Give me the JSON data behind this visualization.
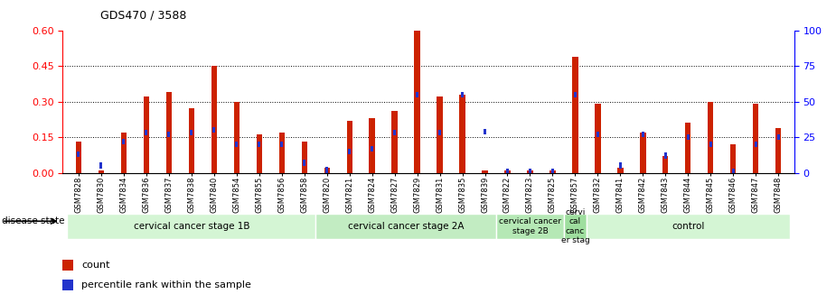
{
  "title": "GDS470 / 3588",
  "samples": [
    "GSM7828",
    "GSM7830",
    "GSM7834",
    "GSM7836",
    "GSM7837",
    "GSM7838",
    "GSM7840",
    "GSM7854",
    "GSM7855",
    "GSM7856",
    "GSM7858",
    "GSM7820",
    "GSM7821",
    "GSM7824",
    "GSM7827",
    "GSM7829",
    "GSM7831",
    "GSM7835",
    "GSM7839",
    "GSM7822",
    "GSM7823",
    "GSM7825",
    "GSM7857",
    "GSM7832",
    "GSM7841",
    "GSM7842",
    "GSM7843",
    "GSM7844",
    "GSM7845",
    "GSM7846",
    "GSM7847",
    "GSM7848"
  ],
  "counts": [
    0.13,
    0.01,
    0.17,
    0.32,
    0.34,
    0.27,
    0.45,
    0.3,
    0.16,
    0.17,
    0.13,
    0.02,
    0.22,
    0.23,
    0.26,
    0.6,
    0.32,
    0.33,
    0.01,
    0.01,
    0.01,
    0.01,
    0.49,
    0.29,
    0.02,
    0.17,
    0.07,
    0.21,
    0.3,
    0.12,
    0.29,
    0.19
  ],
  "percentile_ranks_pct": [
    13,
    5,
    22,
    28,
    27,
    28,
    30,
    20,
    20,
    20,
    7,
    2,
    15,
    17,
    28,
    55,
    28,
    55,
    29,
    1,
    1,
    1,
    55,
    27,
    5,
    27,
    12,
    25,
    20,
    1,
    20,
    25
  ],
  "groups": [
    {
      "label": "cervical cancer stage 1B",
      "start": 0,
      "end": 11
    },
    {
      "label": "cervical cancer stage 2A",
      "start": 11,
      "end": 19
    },
    {
      "label": "cervical cancer\nstage 2B",
      "start": 19,
      "end": 22
    },
    {
      "label": "cervi\ncal\ncanc\ner stag",
      "start": 22,
      "end": 23
    },
    {
      "label": "control",
      "start": 23,
      "end": 32
    }
  ],
  "group_colors": [
    "#d4f5d4",
    "#c2ecc2",
    "#b5e8b5",
    "#9ede9e",
    "#d4f5d4"
  ],
  "ylim_left": [
    0,
    0.6
  ],
  "ylim_right": [
    0,
    100
  ],
  "yticks_left": [
    0,
    0.15,
    0.3,
    0.45,
    0.6
  ],
  "yticks_right": [
    0,
    25,
    50,
    75,
    100
  ],
  "bar_color_red": "#cc2200",
  "bar_color_blue": "#2233cc"
}
